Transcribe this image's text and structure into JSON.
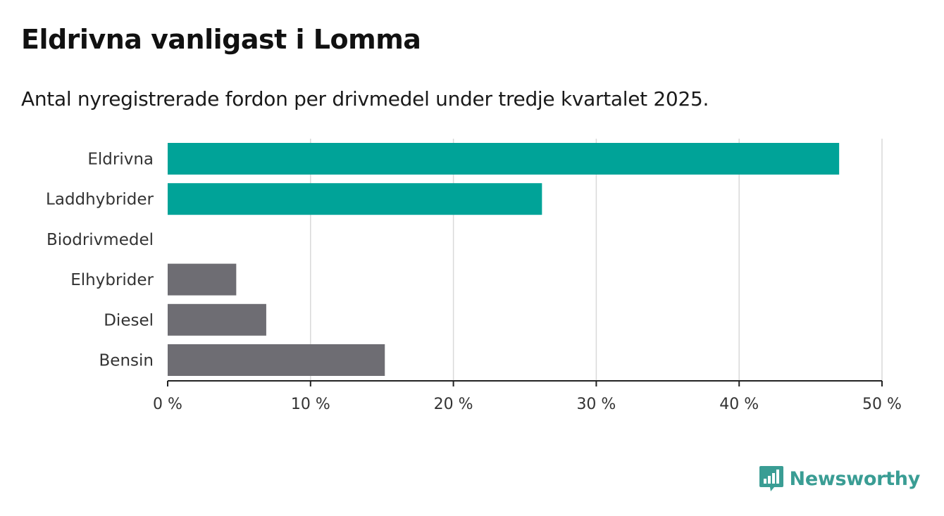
{
  "header": {
    "title": "Eldrivna vanligast i Lomma",
    "subtitle": "Antal nyregistrerade fordon per drivmedel under tredje kvartalet 2025."
  },
  "brand": {
    "name": "Newsworthy",
    "color": "#3a9d94"
  },
  "chart_data": {
    "type": "bar",
    "orientation": "horizontal",
    "title": "Eldrivna vanligast i Lomma",
    "subtitle": "Antal nyregistrerade fordon per drivmedel under tredje kvartalet 2025.",
    "xlabel": "",
    "ylabel": "",
    "categories": [
      "Eldrivna",
      "Laddhybrider",
      "Biodrivmedel",
      "Elhybrider",
      "Diesel",
      "Bensin"
    ],
    "values": [
      47,
      26.2,
      0,
      4.8,
      6.9,
      15.2
    ],
    "colors": [
      "#00a398",
      "#00a398",
      "#00a398",
      "#6e6d73",
      "#6e6d73",
      "#6e6d73"
    ],
    "xlim": [
      0,
      50
    ],
    "xticks": [
      0,
      10,
      20,
      30,
      40,
      50
    ],
    "xtick_labels": [
      "0 %",
      "10 %",
      "20 %",
      "30 %",
      "40 %",
      "50 %"
    ],
    "grid": true,
    "legend": "none"
  }
}
